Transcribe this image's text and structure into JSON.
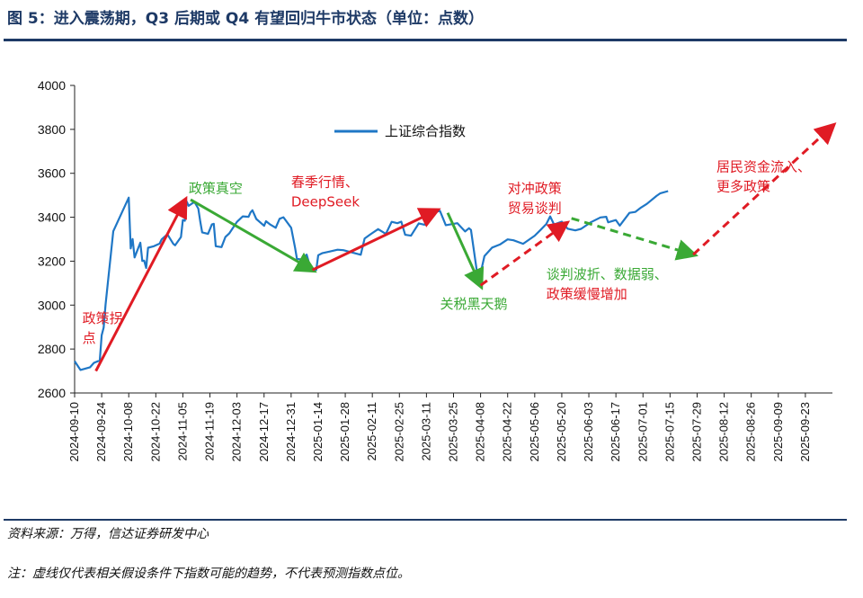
{
  "title": "图 5：进入震荡期，Q3 后期或 Q4 有望回归牛市状态（单位：点数）",
  "source": "资料来源：万得，信达证券研发中心",
  "note": "注：虚线仅代表相关假设条件下指数可能的趋势，不代表预测指数点位。",
  "colors": {
    "line": "#1f77c6",
    "red": "#e01b24",
    "green": "#3aa935",
    "rule": "#1e3a66"
  },
  "chart_data": {
    "type": "line",
    "title": "",
    "xlabel": "",
    "ylabel": "",
    "x_start": "2024-09-10",
    "x_end": "2025-10-07",
    "ylim": [
      2600,
      4000
    ],
    "yticks": [
      2600,
      2800,
      3000,
      3200,
      3400,
      3600,
      3800,
      4000
    ],
    "xticks": [
      "2024-09-10",
      "2024-09-24",
      "2024-10-08",
      "2024-10-22",
      "2024-11-05",
      "2024-11-19",
      "2024-12-03",
      "2024-12-17",
      "2024-12-31",
      "2025-01-14",
      "2025-01-28",
      "2025-02-11",
      "2025-02-25",
      "2025-03-11",
      "2025-03-25",
      "2025-04-08",
      "2025-04-22",
      "2025-05-06",
      "2025-05-20",
      "2025-06-03",
      "2025-06-17",
      "2025-07-01",
      "2025-07-15",
      "2025-07-29",
      "2025-08-12",
      "2025-08-26",
      "2025-09-09",
      "2025-09-23"
    ],
    "legend": {
      "label": "上证综合指数",
      "position": "top-center"
    },
    "series": [
      {
        "name": "上证综合指数",
        "points": [
          [
            "2024-09-10",
            2745
          ],
          [
            "2024-09-13",
            2705
          ],
          [
            "2024-09-18",
            2717
          ],
          [
            "2024-09-20",
            2737
          ],
          [
            "2024-09-23",
            2748
          ],
          [
            "2024-09-24",
            2863
          ],
          [
            "2024-09-25",
            2897
          ],
          [
            "2024-09-26",
            3001
          ],
          [
            "2024-09-27",
            3087
          ],
          [
            "2024-09-30",
            3336
          ],
          [
            "2024-10-08",
            3489
          ],
          [
            "2024-10-09",
            3258
          ],
          [
            "2024-10-10",
            3301
          ],
          [
            "2024-10-11",
            3217
          ],
          [
            "2024-10-14",
            3284
          ],
          [
            "2024-10-15",
            3201
          ],
          [
            "2024-10-16",
            3202
          ],
          [
            "2024-10-17",
            3169
          ],
          [
            "2024-10-18",
            3261
          ],
          [
            "2024-10-21",
            3268
          ],
          [
            "2024-10-24",
            3280
          ],
          [
            "2024-10-25",
            3299
          ],
          [
            "2024-10-28",
            3322
          ],
          [
            "2024-10-31",
            3279
          ],
          [
            "2024-11-01",
            3272
          ],
          [
            "2024-11-04",
            3310
          ],
          [
            "2024-11-05",
            3387
          ],
          [
            "2024-11-06",
            3384
          ],
          [
            "2024-11-07",
            3471
          ],
          [
            "2024-11-08",
            3452
          ],
          [
            "2024-11-11",
            3470
          ],
          [
            "2024-11-13",
            3439
          ],
          [
            "2024-11-14",
            3380
          ],
          [
            "2024-11-15",
            3331
          ],
          [
            "2024-11-18",
            3324
          ],
          [
            "2024-11-20",
            3367
          ],
          [
            "2024-11-21",
            3370
          ],
          [
            "2024-11-22",
            3268
          ],
          [
            "2024-11-25",
            3264
          ],
          [
            "2024-11-27",
            3310
          ],
          [
            "2024-11-29",
            3326
          ],
          [
            "2024-12-03",
            3379
          ],
          [
            "2024-12-06",
            3404
          ],
          [
            "2024-12-09",
            3402
          ],
          [
            "2024-12-10",
            3422
          ],
          [
            "2024-12-11",
            3432
          ],
          [
            "2024-12-13",
            3392
          ],
          [
            "2024-12-17",
            3361
          ],
          [
            "2024-12-18",
            3382
          ],
          [
            "2024-12-20",
            3368
          ],
          [
            "2024-12-23",
            3352
          ],
          [
            "2024-12-25",
            3393
          ],
          [
            "2024-12-27",
            3400
          ],
          [
            "2024-12-31",
            3352
          ],
          [
            "2025-01-02",
            3262
          ],
          [
            "2025-01-03",
            3211
          ],
          [
            "2025-01-06",
            3206
          ],
          [
            "2025-01-08",
            3230
          ],
          [
            "2025-01-10",
            3168
          ],
          [
            "2025-01-13",
            3160
          ],
          [
            "2025-01-14",
            3227
          ],
          [
            "2025-01-16",
            3236
          ],
          [
            "2025-01-20",
            3244
          ],
          [
            "2025-01-24",
            3252
          ],
          [
            "2025-01-27",
            3250
          ],
          [
            "2025-02-05",
            3229
          ],
          [
            "2025-02-07",
            3303
          ],
          [
            "2025-02-10",
            3322
          ],
          [
            "2025-02-14",
            3346
          ],
          [
            "2025-02-18",
            3324
          ],
          [
            "2025-02-21",
            3379
          ],
          [
            "2025-02-24",
            3373
          ],
          [
            "2025-02-26",
            3380
          ],
          [
            "2025-02-28",
            3320
          ],
          [
            "2025-03-03",
            3316
          ],
          [
            "2025-03-07",
            3372
          ],
          [
            "2025-03-10",
            3366
          ],
          [
            "2025-03-14",
            3419
          ],
          [
            "2025-03-18",
            3429
          ],
          [
            "2025-03-21",
            3364
          ],
          [
            "2025-03-25",
            3370
          ],
          [
            "2025-03-27",
            3373
          ],
          [
            "2025-03-31",
            3335
          ],
          [
            "2025-04-02",
            3350
          ],
          [
            "2025-04-03",
            3342
          ],
          [
            "2025-04-07",
            3096
          ],
          [
            "2025-04-08",
            3145
          ],
          [
            "2025-04-10",
            3223
          ],
          [
            "2025-04-14",
            3262
          ],
          [
            "2025-04-18",
            3276
          ],
          [
            "2025-04-22",
            3299
          ],
          [
            "2025-04-25",
            3295
          ],
          [
            "2025-04-30",
            3279
          ],
          [
            "2025-05-06",
            3316
          ],
          [
            "2025-05-09",
            3342
          ],
          [
            "2025-05-12",
            3369
          ],
          [
            "2025-05-14",
            3404
          ],
          [
            "2025-05-16",
            3367
          ],
          [
            "2025-05-20",
            3380
          ],
          [
            "2025-05-23",
            3348
          ],
          [
            "2025-05-27",
            3340
          ],
          [
            "2025-05-30",
            3347
          ],
          [
            "2025-06-04",
            3377
          ],
          [
            "2025-06-09",
            3399
          ],
          [
            "2025-06-12",
            3402
          ],
          [
            "2025-06-13",
            3377
          ],
          [
            "2025-06-17",
            3387
          ],
          [
            "2025-06-19",
            3362
          ],
          [
            "2025-06-24",
            3420
          ],
          [
            "2025-06-27",
            3424
          ],
          [
            "2025-06-30",
            3444
          ],
          [
            "2025-07-03",
            3461
          ],
          [
            "2025-07-08",
            3497
          ],
          [
            "2025-07-10",
            3509
          ],
          [
            "2025-07-14",
            3519
          ]
        ]
      }
    ],
    "arrows": [
      {
        "color": "red",
        "style": "solid",
        "from": [
          "2024-09-21",
          2700
        ],
        "to": [
          "2024-11-06",
          3475
        ]
      },
      {
        "color": "green",
        "style": "solid",
        "from": [
          "2024-11-09",
          3480
        ],
        "to": [
          "2025-01-11",
          3160
        ]
      },
      {
        "color": "red",
        "style": "solid",
        "from": [
          "2025-01-11",
          3160
        ],
        "to": [
          "2025-03-16",
          3430
        ]
      },
      {
        "color": "green",
        "style": "solid",
        "from": [
          "2025-03-22",
          3420
        ],
        "to": [
          "2025-04-08",
          3090
        ]
      },
      {
        "color": "red",
        "style": "dashed",
        "from": [
          "2025-04-08",
          3090
        ],
        "to": [
          "2025-05-22",
          3370
        ]
      },
      {
        "color": "green",
        "style": "dashed",
        "from": [
          "2025-05-25",
          3395
        ],
        "to": [
          "2025-07-27",
          3230
        ]
      },
      {
        "color": "red",
        "style": "dashed",
        "from": [
          "2025-07-27",
          3230
        ],
        "to": [
          "2025-10-07",
          3815
        ]
      }
    ],
    "annotations": [
      {
        "lines": [
          "政策拐",
          "点"
        ],
        "color": "red",
        "at": [
          "2024-09-14",
          2920
        ]
      },
      {
        "lines": [
          "政策真空"
        ],
        "color": "green",
        "at": [
          "2024-11-08",
          3510
        ]
      },
      {
        "lines": [
          "春季行情、",
          "DeepSeek"
        ],
        "color": "red",
        "at": [
          "2024-12-31",
          3540
        ]
      },
      {
        "lines": [
          "关税黑天鹅"
        ],
        "color": "green",
        "at": [
          "2025-03-18",
          2985
        ]
      },
      {
        "lines": [
          "对冲政策",
          "贸易谈判"
        ],
        "color": "red",
        "at": [
          "2025-04-22",
          3510
        ]
      },
      {
        "lines": [
          "谈判波折、数据弱、",
          "政策缓慢增加"
        ],
        "color": "green_red",
        "at": [
          "2025-05-12",
          3120
        ]
      },
      {
        "lines": [
          "居民资金流入、",
          "更多政策"
        ],
        "color": "red",
        "at": [
          "2025-08-08",
          3610
        ]
      }
    ]
  }
}
